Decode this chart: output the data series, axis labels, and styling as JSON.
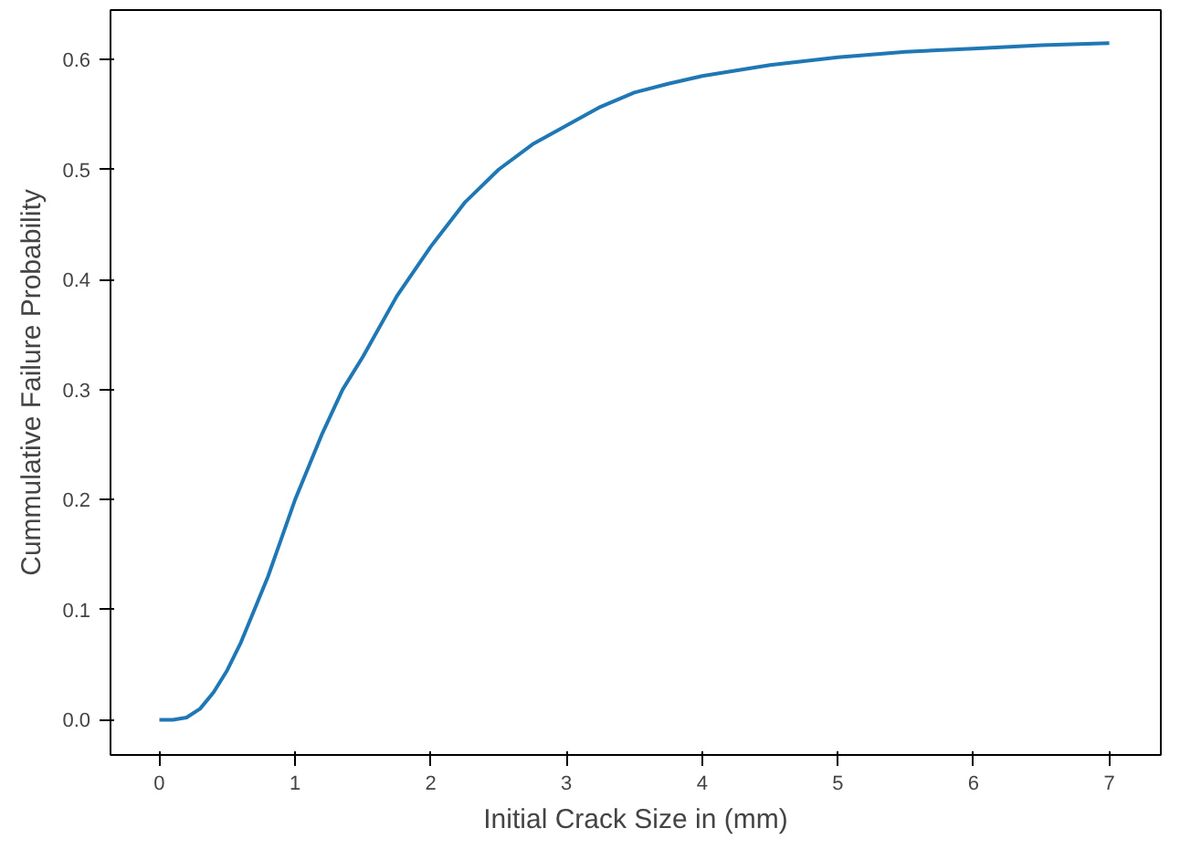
{
  "chart_data": {
    "type": "line",
    "xlabel": "Initial Crack Size in (mm)",
    "ylabel": "Cummulative Failure Probability",
    "xlim": [
      -0.36,
      7.38
    ],
    "ylim": [
      -0.032,
      0.645
    ],
    "xticks": [
      0,
      1,
      2,
      3,
      4,
      5,
      6,
      7
    ],
    "yticks": [
      {
        "value": 0,
        "label": "0.0"
      },
      0.1,
      0.2,
      0.3,
      0.4,
      0.5,
      0.6
    ],
    "x": [
      0,
      0.1,
      0.2,
      0.3,
      0.4,
      0.5,
      0.6,
      0.7,
      0.8,
      0.9,
      1.0,
      1.1,
      1.2,
      1.35,
      1.5,
      1.75,
      2.0,
      2.25,
      2.5,
      2.75,
      3.0,
      3.25,
      3.5,
      3.75,
      4.0,
      4.5,
      5.0,
      5.5,
      6.0,
      6.5,
      7.0
    ],
    "series": [
      {
        "color": "#1f77b4",
        "values": [
          0.0,
          0.0,
          0.002,
          0.01,
          0.025,
          0.045,
          0.07,
          0.1,
          0.13,
          0.165,
          0.2,
          0.23,
          0.26,
          0.3,
          0.33,
          0.385,
          0.43,
          0.47,
          0.5,
          0.523,
          0.54,
          0.557,
          0.57,
          0.578,
          0.585,
          0.595,
          0.602,
          0.607,
          0.61,
          0.613,
          0.615
        ]
      }
    ],
    "marker": "none",
    "line_style": "solid"
  }
}
